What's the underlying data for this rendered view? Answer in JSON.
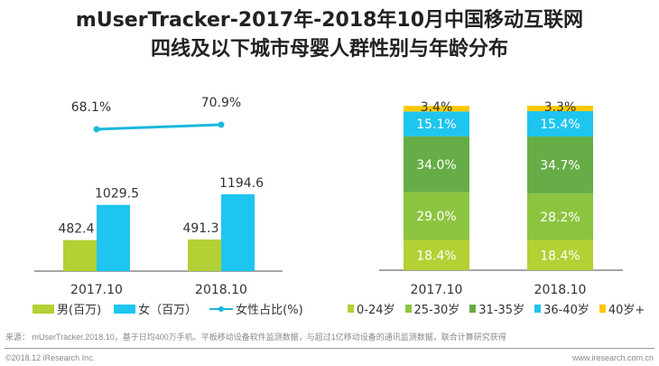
{
  "title": [
    "mUserTracker-2017年-2018年10月中国移动互联网",
    "四线及以下城市母婴人群性别与年龄分布"
  ],
  "chart_data": [
    {
      "type": "bar",
      "categories": [
        "2017.10",
        "2018.10"
      ],
      "series": [
        {
          "name": "男(百万)",
          "values": [
            482.4,
            491.3
          ],
          "color": "#b3d034"
        },
        {
          "name": "女（百万）",
          "values": [
            1029.5,
            1194.6
          ],
          "color": "#1ec5ef"
        }
      ],
      "line": {
        "name": "女性占比(%)",
        "values": [
          68.1,
          70.9
        ],
        "labels": [
          "68.1%",
          "70.9%"
        ],
        "color": "#1ab8dc"
      },
      "legend_position": "bottom",
      "grid": false
    },
    {
      "type": "bar",
      "stacked": true,
      "categories": [
        "2017.10",
        "2018.10"
      ],
      "series": [
        {
          "name": "0-24岁",
          "values": [
            18.4,
            18.4
          ],
          "color": "#b3d034"
        },
        {
          "name": "25-30岁",
          "values": [
            29.0,
            28.2
          ],
          "color": "#8dc43f"
        },
        {
          "name": "31-35岁",
          "values": [
            34.0,
            34.7
          ],
          "color": "#66ad47"
        },
        {
          "name": "36-40岁",
          "values": [
            15.1,
            15.4
          ],
          "color": "#1ec5ef"
        },
        {
          "name": "40岁+",
          "values": [
            3.4,
            3.3
          ],
          "color": "#fcc800"
        }
      ],
      "legend_position": "bottom",
      "grid": false
    }
  ],
  "footer": {
    "source": "来源： mUserTracker.2018.10，基于日均400万手机、平板移动设备软件监测数据，与超过1亿移动设备的通讯监测数据，联合计算研究获得",
    "copyright": "©2018.12 iResearch Inc.",
    "website": "www.iresearch.com.cn"
  }
}
